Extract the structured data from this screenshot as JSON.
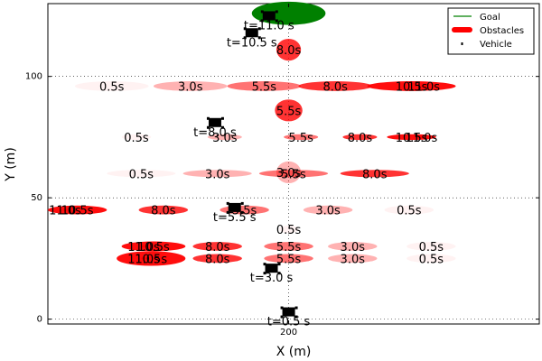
{
  "chart_data": {
    "type": "scatter",
    "xlabel": "X (m)",
    "ylabel": "Y (m)",
    "xlim": [
      151,
      251
    ],
    "ylim": [
      -2,
      130
    ],
    "xticks": [
      200
    ],
    "yticks": [
      0,
      50,
      100
    ],
    "grid": true,
    "legend_position": "top-right",
    "legend": [
      {
        "label": "Goal",
        "marker": "line",
        "color": "#008000"
      },
      {
        "label": "Obstacles",
        "marker": "ellipse",
        "color": "#ff0000"
      },
      {
        "label": "Vehicle",
        "marker": "point",
        "color": "#000000"
      }
    ],
    "goal": {
      "x": 200,
      "y": 126,
      "rx": 7.5,
      "ry": 4.8,
      "color": "#008000"
    },
    "obstacles": [
      {
        "x": 164.0,
        "y": 96,
        "rx": 7.5,
        "ry": 2.0,
        "alpha": 0.05,
        "label": "0.5s"
      },
      {
        "x": 180.0,
        "y": 96,
        "rx": 7.5,
        "ry": 2.0,
        "alpha": 0.3,
        "label": "3.0s"
      },
      {
        "x": 195.0,
        "y": 96,
        "rx": 7.5,
        "ry": 2.0,
        "alpha": 0.55,
        "label": "5.5s"
      },
      {
        "x": 209.5,
        "y": 96,
        "rx": 7.5,
        "ry": 2.0,
        "alpha": 0.8,
        "label": "8.0s"
      },
      {
        "x": 225.0,
        "y": 96,
        "rx": 9.0,
        "ry": 2.0,
        "alpha": 0.95,
        "label": "10.5s"
      },
      {
        "x": 227.5,
        "y": 96,
        "rx": 0.5,
        "ry": 0.5,
        "alpha": 0.95,
        "label": "11.0s"
      },
      {
        "x": 169.0,
        "y": 75,
        "rx": 3.0,
        "ry": 1.2,
        "alpha": 0.05,
        "label": "0.5s"
      },
      {
        "x": 187.0,
        "y": 75,
        "rx": 3.5,
        "ry": 1.2,
        "alpha": 0.3,
        "label": "3.0s"
      },
      {
        "x": 202.5,
        "y": 75,
        "rx": 3.5,
        "ry": 1.2,
        "alpha": 0.55,
        "label": "5.5s"
      },
      {
        "x": 214.5,
        "y": 75,
        "rx": 3.5,
        "ry": 1.2,
        "alpha": 0.8,
        "label": "8.0s"
      },
      {
        "x": 225.0,
        "y": 75,
        "rx": 5.0,
        "ry": 1.2,
        "alpha": 0.95,
        "label": "10.5s"
      },
      {
        "x": 227.0,
        "y": 75,
        "rx": 0.5,
        "ry": 0.5,
        "alpha": 0.95,
        "label": "11.0s"
      },
      {
        "x": 170.0,
        "y": 60,
        "rx": 7.0,
        "ry": 1.5,
        "alpha": 0.05,
        "label": "0.5s"
      },
      {
        "x": 185.5,
        "y": 60,
        "rx": 7.0,
        "ry": 1.5,
        "alpha": 0.3,
        "label": "3.0s"
      },
      {
        "x": 201.0,
        "y": 60,
        "rx": 7.0,
        "ry": 1.5,
        "alpha": 0.55,
        "label": "5.5s"
      },
      {
        "x": 217.5,
        "y": 60,
        "rx": 7.0,
        "ry": 1.5,
        "alpha": 0.8,
        "label": "8.0s"
      },
      {
        "x": 157.0,
        "y": 45,
        "rx": 6.0,
        "ry": 1.8,
        "alpha": 0.95,
        "label": "10.5s"
      },
      {
        "x": 154.5,
        "y": 45,
        "rx": 0.5,
        "ry": 0.5,
        "alpha": 0.95,
        "label": "11.0s"
      },
      {
        "x": 174.5,
        "y": 45,
        "rx": 5.0,
        "ry": 1.8,
        "alpha": 0.8,
        "label": "8.0s"
      },
      {
        "x": 191.0,
        "y": 45,
        "rx": 5.0,
        "ry": 1.8,
        "alpha": 0.55,
        "label": "5.5s"
      },
      {
        "x": 208.0,
        "y": 45,
        "rx": 5.0,
        "ry": 1.8,
        "alpha": 0.3,
        "label": "3.0s"
      },
      {
        "x": 224.5,
        "y": 45,
        "rx": 5.0,
        "ry": 1.8,
        "alpha": 0.05,
        "label": "0.5s"
      },
      {
        "x": 200.0,
        "y": 37,
        "rx": 2.0,
        "ry": 1.5,
        "alpha": 0.05,
        "label": "0.5s"
      },
      {
        "x": 200.0,
        "y": 30,
        "rx": 5.0,
        "ry": 1.8,
        "alpha": 0.55,
        "label": "5.5s"
      },
      {
        "x": 200.0,
        "y": 25,
        "rx": 5.0,
        "ry": 1.8,
        "alpha": 0.55,
        "label": "5.5s"
      },
      {
        "x": 172.5,
        "y": 30,
        "rx": 6.5,
        "ry": 2.0,
        "alpha": 0.95,
        "label": "10.5s"
      },
      {
        "x": 170.5,
        "y": 30,
        "rx": 0.5,
        "ry": 0.5,
        "alpha": 0.95,
        "label": "11.0s"
      },
      {
        "x": 172.0,
        "y": 25,
        "rx": 7.0,
        "ry": 3.0,
        "alpha": 0.95,
        "label": "10.5s"
      },
      {
        "x": 170.5,
        "y": 25,
        "rx": 0.5,
        "ry": 0.5,
        "alpha": 0.95,
        "label": "11.0s"
      },
      {
        "x": 185.5,
        "y": 30,
        "rx": 5.0,
        "ry": 1.8,
        "alpha": 0.8,
        "label": "8.0s"
      },
      {
        "x": 185.5,
        "y": 25,
        "rx": 5.0,
        "ry": 1.8,
        "alpha": 0.8,
        "label": "8.0s"
      },
      {
        "x": 213.0,
        "y": 30,
        "rx": 5.0,
        "ry": 1.8,
        "alpha": 0.3,
        "label": "3.0s"
      },
      {
        "x": 213.0,
        "y": 25,
        "rx": 5.0,
        "ry": 1.8,
        "alpha": 0.3,
        "label": "3.0s"
      },
      {
        "x": 229.0,
        "y": 30,
        "rx": 5.0,
        "ry": 1.8,
        "alpha": 0.05,
        "label": "0.5s"
      },
      {
        "x": 229.0,
        "y": 25,
        "rx": 5.0,
        "ry": 1.8,
        "alpha": 0.05,
        "label": "0.5s"
      },
      {
        "x": 200.0,
        "y": 111,
        "rx": 2.5,
        "ry": 4.5,
        "alpha": 0.8,
        "label": "8.0s"
      },
      {
        "x": 200.0,
        "y": 86,
        "rx": 2.8,
        "ry": 4.5,
        "alpha": 0.8,
        "label": "5.5s"
      },
      {
        "x": 200.0,
        "y": 60.5,
        "rx": 2.5,
        "ry": 4.5,
        "alpha": 0.3,
        "label": "3.0s"
      }
    ],
    "vehicle": [
      {
        "x": 200.0,
        "y": 3,
        "label": "t=0.5 s"
      },
      {
        "x": 196.5,
        "y": 21,
        "label": "t=3.0 s"
      },
      {
        "x": 189.0,
        "y": 46,
        "label": "t=5.5 s"
      },
      {
        "x": 185.0,
        "y": 81,
        "label": "t=8.0 s"
      },
      {
        "x": 192.5,
        "y": 118,
        "label": "t=10.5 s"
      },
      {
        "x": 196.0,
        "y": 125,
        "label": "t=11.0 s"
      }
    ]
  }
}
